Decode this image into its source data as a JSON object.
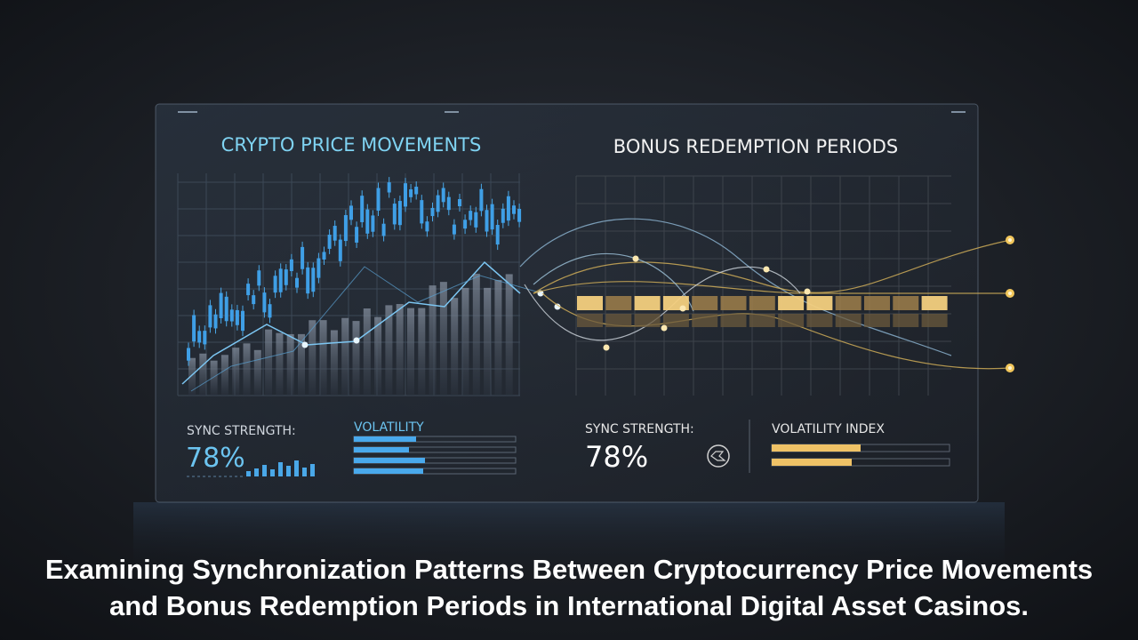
{
  "left_panel": {
    "title": "CRYPTO PRICE MOVEMENTS",
    "sync_label": "SYNC STRENGTH:",
    "sync_value": "78%",
    "volatility_label": "VOLATILITY"
  },
  "right_panel": {
    "title": "BONUS REDEMPTION PERIODS",
    "sync_label": "SYNC STRENGTH:",
    "sync_value": "78%",
    "volatility_label": "VOLATILITY INDEX"
  },
  "caption": [
    "Examining Synchronization Patterns Between Cryptocurrency Price Movements",
    "and Bonus Redemption Periods in International Digital Asset Casinos."
  ]
}
